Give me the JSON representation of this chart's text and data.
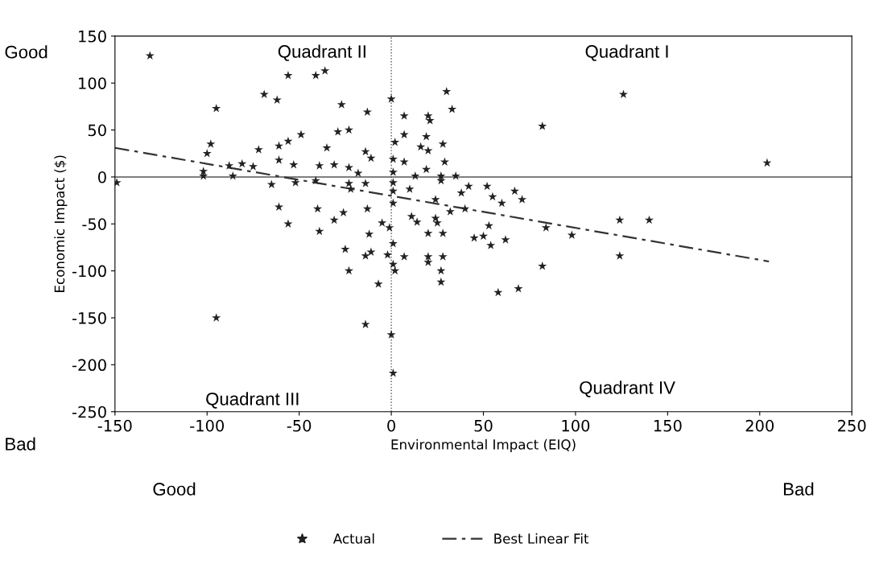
{
  "chart_data": {
    "type": "scatter",
    "xlabel": "Environmental Impact (EIQ)",
    "ylabel": "Economic Impact ($)",
    "xlim": [
      -150,
      250
    ],
    "ylim": [
      -250,
      150
    ],
    "xticks": [
      -150,
      -100,
      -50,
      0,
      50,
      100,
      150,
      200,
      250
    ],
    "yticks": [
      -250,
      -200,
      -150,
      -100,
      -50,
      0,
      50,
      100,
      150
    ],
    "grid": false,
    "legend": "bottom",
    "marker": "star",
    "ref_lines": [
      {
        "axis": "x",
        "value": 0,
        "color": "#555555",
        "line_style": "dotted"
      },
      {
        "axis": "y",
        "value": 0,
        "color": "#555555",
        "line_style": "solid"
      }
    ],
    "annotations": [
      "Good",
      "Bad",
      "Good",
      "Bad",
      "Quadrant II",
      "Quadrant I",
      "Quadrant III",
      "Quadrant IV"
    ],
    "series": [
      {
        "name": "Actual",
        "color": "#222222",
        "x": [
          -131,
          -56,
          -41,
          -36,
          -69,
          -62,
          -95,
          -27,
          -13,
          -23,
          -29,
          -49,
          -56,
          -61,
          -72,
          -98,
          -100,
          -35,
          -14,
          -61,
          -53,
          -39,
          -31,
          -23,
          -18,
          -88,
          -81,
          -75,
          -102,
          -102,
          -86,
          -149,
          -65,
          -52,
          -41,
          -23,
          -14,
          -22,
          -61,
          -40,
          -26,
          -13,
          -31,
          -56,
          -39,
          -12,
          -25,
          -14,
          -23,
          -95,
          -14,
          0,
          30,
          33,
          7,
          20,
          21,
          7,
          19,
          28,
          16,
          2,
          -11,
          1,
          7,
          20,
          29,
          19,
          1,
          13,
          27,
          35,
          1,
          10,
          27,
          1,
          1,
          42,
          38,
          52,
          55,
          67,
          71,
          60,
          24,
          11,
          24,
          40,
          32,
          -5,
          14,
          -1,
          20,
          28,
          25,
          45,
          50,
          54,
          62,
          53,
          1,
          -11,
          -2,
          7,
          1,
          2,
          -7,
          20,
          28,
          27,
          27,
          20,
          58,
          69,
          0,
          1,
          126,
          82,
          204,
          124,
          140,
          84,
          98,
          124,
          82
        ],
        "values": [
          129,
          108,
          108,
          113,
          88,
          82,
          73,
          77,
          69,
          50,
          48,
          45,
          38,
          33,
          29,
          35,
          25,
          31,
          27,
          18,
          13,
          12,
          13,
          10,
          4,
          12,
          14,
          11,
          6,
          1,
          1,
          -6,
          -8,
          -6,
          -4,
          -7,
          -7,
          -13,
          -32,
          -34,
          -38,
          -34,
          -46,
          -50,
          -58,
          -61,
          -77,
          -84,
          -100,
          -150,
          -157,
          83,
          91,
          72,
          65,
          65,
          60,
          45,
          43,
          35,
          32,
          37,
          20,
          19,
          16,
          28,
          16,
          8,
          5,
          1,
          1,
          1,
          -6,
          -13,
          -4,
          -15,
          -28,
          -10,
          -17,
          -10,
          -21,
          -15,
          -24,
          -28,
          -24,
          -42,
          -44,
          -34,
          -37,
          -49,
          -48,
          -54,
          -60,
          -60,
          -49,
          -65,
          -63,
          -73,
          -67,
          -52,
          -71,
          -80,
          -83,
          -85,
          -93,
          -100,
          -114,
          -85,
          -85,
          -100,
          -112,
          -91,
          -123,
          -119,
          -168,
          -209,
          88,
          54,
          15,
          -46,
          -46,
          -54,
          -62,
          -84,
          -95
        ]
      },
      {
        "name": "Best Linear Fit",
        "type": "line",
        "color": "#333333",
        "line_style": "dashed",
        "marker": "none",
        "x": [
          -150,
          205
        ],
        "values": [
          31,
          -90
        ]
      }
    ]
  }
}
